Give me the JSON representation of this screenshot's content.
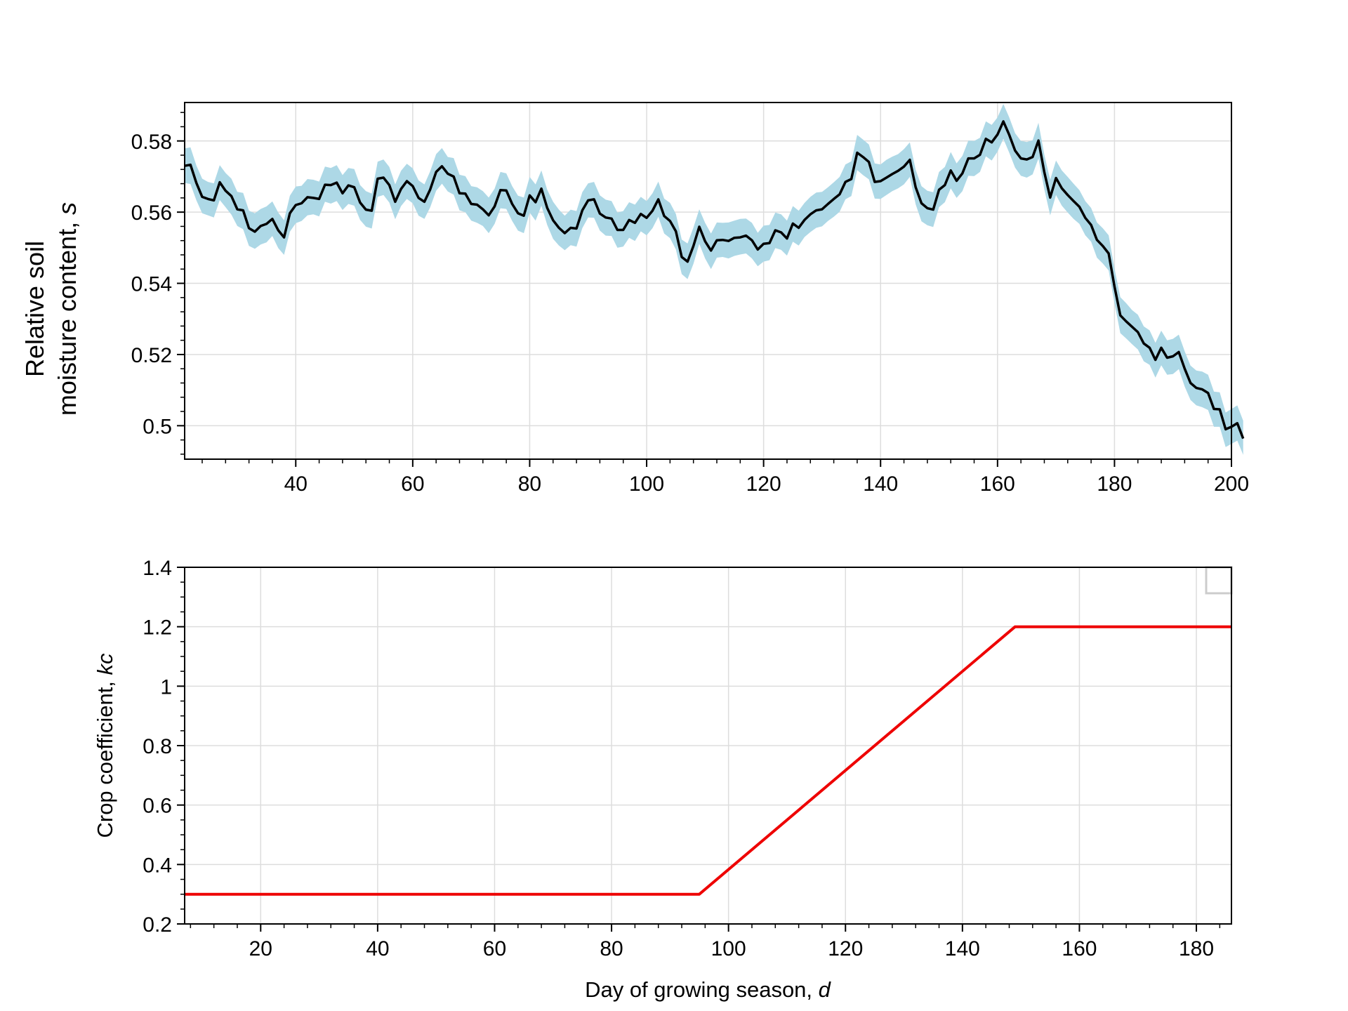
{
  "chart_data": [
    {
      "type": "line",
      "ylabel": "Relative soil",
      "ylabel_line2": "moisture content, ",
      "ylabel_var": "s",
      "xlabel": "",
      "xlim": [
        21,
        200
      ],
      "ylim": [
        0.4906,
        0.5908
      ],
      "xticks": [
        40,
        60,
        80,
        100,
        120,
        140,
        160,
        180,
        200
      ],
      "xtick_labels": [
        "40",
        "60",
        "80",
        "100",
        "120",
        "140",
        "160",
        "180",
        "200"
      ],
      "yticks": [
        0.5,
        0.52,
        0.54,
        0.56,
        0.58
      ],
      "ytick_labels": [
        "0.5",
        "0.52",
        "0.54",
        "0.56",
        "0.58"
      ],
      "grid": true,
      "line_color": "#000000",
      "band_color": "#add8e6",
      "x_start": 21,
      "x_step": 1,
      "values": [
        0.573,
        0.5733,
        0.5682,
        0.5643,
        0.5637,
        0.5633,
        0.5684,
        0.566,
        0.5645,
        0.5608,
        0.5605,
        0.5555,
        0.5545,
        0.5561,
        0.5567,
        0.5581,
        0.5549,
        0.5529,
        0.5597,
        0.562,
        0.5625,
        0.5642,
        0.564,
        0.5637,
        0.5677,
        0.5676,
        0.5683,
        0.5653,
        0.5675,
        0.567,
        0.5627,
        0.5607,
        0.5604,
        0.5694,
        0.5697,
        0.5676,
        0.5629,
        0.5665,
        0.5687,
        0.5673,
        0.564,
        0.5629,
        0.5664,
        0.5713,
        0.5729,
        0.5708,
        0.57,
        0.5653,
        0.5652,
        0.5623,
        0.5621,
        0.5608,
        0.5591,
        0.5616,
        0.5662,
        0.5661,
        0.5623,
        0.5597,
        0.559,
        0.5647,
        0.5628,
        0.5666,
        0.5612,
        0.5577,
        0.5556,
        0.5541,
        0.5556,
        0.5554,
        0.5605,
        0.5633,
        0.5636,
        0.5596,
        0.5585,
        0.5582,
        0.555,
        0.555,
        0.5578,
        0.557,
        0.5595,
        0.5584,
        0.5604,
        0.5636,
        0.5589,
        0.5575,
        0.5546,
        0.5474,
        0.5461,
        0.5505,
        0.5559,
        0.5518,
        0.5492,
        0.5521,
        0.5522,
        0.5519,
        0.5528,
        0.5529,
        0.5534,
        0.5521,
        0.5495,
        0.5511,
        0.5513,
        0.5549,
        0.5543,
        0.5526,
        0.5568,
        0.5556,
        0.5578,
        0.5594,
        0.5605,
        0.5608,
        0.5623,
        0.5637,
        0.565,
        0.5685,
        0.5693,
        0.5767,
        0.5755,
        0.5741,
        0.5685,
        0.5687,
        0.5697,
        0.5707,
        0.5716,
        0.5728,
        0.5747,
        0.567,
        0.5625,
        0.5611,
        0.5607,
        0.5663,
        0.5676,
        0.5717,
        0.5688,
        0.5709,
        0.5751,
        0.5751,
        0.5761,
        0.5806,
        0.5796,
        0.5818,
        0.5855,
        0.5817,
        0.5773,
        0.5751,
        0.5748,
        0.5755,
        0.5801,
        0.5712,
        0.5641,
        0.5696,
        0.5667,
        0.5648,
        0.5631,
        0.5615,
        0.5584,
        0.5564,
        0.5522,
        0.5505,
        0.5484,
        0.5391,
        0.531,
        0.5293,
        0.5278,
        0.5263,
        0.5231,
        0.5219,
        0.5185,
        0.5219,
        0.5191,
        0.5195,
        0.5207,
        0.516,
        0.512,
        0.5106,
        0.5102,
        0.5092,
        0.5047,
        0.5046,
        0.499,
        0.4997,
        0.5007,
        0.4964
      ],
      "band_lower": [
        0.5682,
        0.5679,
        0.5633,
        0.5597,
        0.5591,
        0.5585,
        0.5634,
        0.5614,
        0.5593,
        0.5561,
        0.5552,
        0.5505,
        0.5497,
        0.5509,
        0.5515,
        0.5533,
        0.5499,
        0.548,
        0.5545,
        0.5569,
        0.5575,
        0.5591,
        0.5594,
        0.5588,
        0.5629,
        0.5624,
        0.5631,
        0.5606,
        0.5623,
        0.5618,
        0.5578,
        0.5559,
        0.5554,
        0.5643,
        0.5648,
        0.5627,
        0.558,
        0.5617,
        0.5637,
        0.5625,
        0.559,
        0.5581,
        0.5614,
        0.566,
        0.568,
        0.5658,
        0.5649,
        0.5605,
        0.56,
        0.5576,
        0.557,
        0.5561,
        0.5541,
        0.5567,
        0.5611,
        0.5609,
        0.5575,
        0.5548,
        0.5541,
        0.5599,
        0.5576,
        0.5618,
        0.5564,
        0.5525,
        0.5506,
        0.5493,
        0.5507,
        0.5503,
        0.5555,
        0.5585,
        0.5584,
        0.5548,
        0.5534,
        0.5533,
        0.55,
        0.5503,
        0.5528,
        0.5519,
        0.5546,
        0.5535,
        0.5555,
        0.5587,
        0.554,
        0.5527,
        0.5495,
        0.5426,
        0.5412,
        0.5455,
        0.5511,
        0.547,
        0.544,
        0.5472,
        0.5474,
        0.547,
        0.5477,
        0.5481,
        0.5484,
        0.547,
        0.5448,
        0.5461,
        0.5465,
        0.5499,
        0.5494,
        0.5478,
        0.5517,
        0.5506,
        0.553,
        0.5544,
        0.5556,
        0.556,
        0.5575,
        0.5587,
        0.5601,
        0.5636,
        0.5645,
        0.5718,
        0.5704,
        0.5692,
        0.5638,
        0.5637,
        0.5648,
        0.5659,
        0.5667,
        0.5678,
        0.5699,
        0.5622,
        0.5574,
        0.5563,
        0.5558,
        0.5614,
        0.5628,
        0.5667,
        0.564,
        0.5659,
        0.5702,
        0.5701,
        0.5713,
        0.5757,
        0.5745,
        0.577,
        0.5806,
        0.5767,
        0.5725,
        0.5702,
        0.5697,
        0.5706,
        0.5751,
        0.5664,
        0.5591,
        0.5648,
        0.5618,
        0.5599,
        0.5581,
        0.5567,
        0.5535,
        0.5517,
        0.5472,
        0.5456,
        0.5436,
        0.5344,
        0.526,
        0.5245,
        0.5229,
        0.5214,
        0.5181,
        0.5171,
        0.5135,
        0.517,
        0.5143,
        0.5145,
        0.5159,
        0.511,
        0.5072,
        0.5057,
        0.5052,
        0.5044,
        0.4997,
        0.4997,
        0.494,
        0.4949,
        0.4958,
        0.4918
      ],
      "band_upper": [
        0.5779,
        0.5782,
        0.5731,
        0.5694,
        0.5685,
        0.5681,
        0.5732,
        0.571,
        0.5694,
        0.5657,
        0.5654,
        0.5604,
        0.5597,
        0.5609,
        0.5616,
        0.563,
        0.5599,
        0.5577,
        0.5646,
        0.5672,
        0.5674,
        0.5693,
        0.5691,
        0.5686,
        0.5728,
        0.5724,
        0.5732,
        0.5704,
        0.5724,
        0.5721,
        0.5676,
        0.5659,
        0.5652,
        0.5742,
        0.5748,
        0.5727,
        0.5678,
        0.5716,
        0.5736,
        0.5723,
        0.5689,
        0.5678,
        0.5715,
        0.5763,
        0.578,
        0.5755,
        0.5752,
        0.5705,
        0.5701,
        0.5673,
        0.567,
        0.5659,
        0.5641,
        0.5666,
        0.5713,
        0.5709,
        0.5673,
        0.5646,
        0.5641,
        0.5699,
        0.5678,
        0.5717,
        0.5663,
        0.5629,
        0.5607,
        0.559,
        0.5607,
        0.5603,
        0.5656,
        0.5681,
        0.5685,
        0.5647,
        0.5635,
        0.5631,
        0.5599,
        0.5603,
        0.5628,
        0.5621,
        0.5643,
        0.5631,
        0.5653,
        0.5686,
        0.5638,
        0.5626,
        0.5595,
        0.5523,
        0.5512,
        0.5557,
        0.5608,
        0.557,
        0.554,
        0.5571,
        0.557,
        0.5571,
        0.5576,
        0.5581,
        0.5582,
        0.557,
        0.5542,
        0.5562,
        0.5564,
        0.5599,
        0.5594,
        0.5576,
        0.5617,
        0.5604,
        0.5626,
        0.5643,
        0.5655,
        0.5657,
        0.567,
        0.5684,
        0.5699,
        0.5734,
        0.5743,
        0.5817,
        0.5804,
        0.579,
        0.5737,
        0.5734,
        0.5747,
        0.5756,
        0.5763,
        0.5777,
        0.5796,
        0.5719,
        0.5673,
        0.566,
        0.5656,
        0.5713,
        0.5727,
        0.5769,
        0.5737,
        0.5758,
        0.5801,
        0.58,
        0.5809,
        0.5855,
        0.5845,
        0.5866,
        0.5904,
        0.5866,
        0.5822,
        0.58,
        0.5797,
        0.5802,
        0.5851,
        0.5761,
        0.5691,
        0.5745,
        0.5717,
        0.5699,
        0.568,
        0.5662,
        0.5631,
        0.5612,
        0.5571,
        0.5555,
        0.5535,
        0.5442,
        0.5361,
        0.5344,
        0.5325,
        0.5312,
        0.5279,
        0.5268,
        0.5233,
        0.5267,
        0.524,
        0.5244,
        0.5256,
        0.5209,
        0.5169,
        0.5155,
        0.5152,
        0.5143,
        0.5096,
        0.5094,
        0.5037,
        0.5047,
        0.5057,
        0.5014
      ]
    },
    {
      "type": "line",
      "ylabel": "Crop coefficient, ",
      "ylabel_var": "kc",
      "xlabel": "Day of growing season, ",
      "xlabel_var": "d",
      "xlim": [
        7,
        186
      ],
      "ylim": [
        0.2,
        1.4
      ],
      "xticks": [
        20,
        40,
        60,
        80,
        100,
        120,
        140,
        160,
        180
      ],
      "xtick_labels": [
        "20",
        "40",
        "60",
        "80",
        "100",
        "120",
        "140",
        "160",
        "180"
      ],
      "yticks": [
        0.2,
        0.4,
        0.6,
        0.8,
        1,
        1.2,
        1.4
      ],
      "ytick_labels": [
        "0.2",
        "0.4",
        "0.6",
        "0.8",
        "1",
        "1.2",
        "1.4"
      ],
      "grid": true,
      "legend_position": "top-right",
      "line_color": "#ee0000",
      "x": [
        7,
        95,
        149,
        186
      ],
      "values": [
        0.3,
        0.3,
        1.2,
        1.2
      ]
    }
  ]
}
